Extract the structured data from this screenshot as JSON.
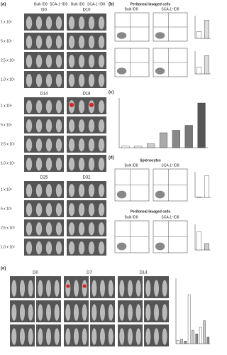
{
  "panels": {
    "a": {
      "label": "(a)",
      "columns": [
        "Bulk ID8",
        "SCA-1⁺ID8"
      ],
      "days": [
        [
          "D0",
          "D10"
        ],
        [
          "D14",
          "D18"
        ],
        [
          "D25",
          "D32"
        ]
      ],
      "rows": [
        "1 x 10⁶",
        "5 x 10⁵",
        "2.5 x 10⁵",
        "1.0 x 10⁵"
      ]
    },
    "b": {
      "label": "(b)",
      "title": "Peritoneal lavaged cells",
      "columns": [
        "Bulk ID8",
        "SCA-1⁺ID8"
      ]
    },
    "c": {
      "label": "(c)"
    },
    "d": {
      "label": "(d)",
      "title": "Splenocytes",
      "columns": [
        "Bulk ID8",
        "SCA-1⁺ID8"
      ],
      "title2": "Peritoneal lavaged cells",
      "columns2": [
        "Bulk ID8",
        "SCA-1⁺ID8"
      ]
    },
    "e": {
      "label": "(e)",
      "days": [
        "D0",
        "D7",
        "D14"
      ]
    }
  }
}
